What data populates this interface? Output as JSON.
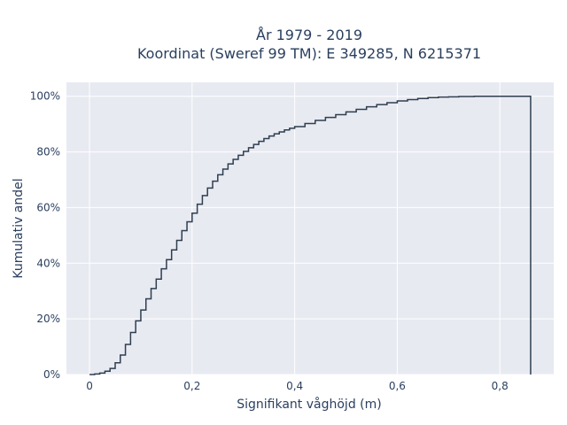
{
  "chart_data": {
    "type": "line",
    "subtype": "empirical-cdf-step",
    "title_lines": [
      "År 1979 - 2019",
      "Koordinat (Sweref 99 TM): E 349285, N 6215371"
    ],
    "xlabel": "Signifikant våghöjd (m)",
    "ylabel": "Kumulativ andel",
    "xlim": [
      -0.045,
      0.905
    ],
    "ylim": [
      -0.0,
      1.05
    ],
    "x_ticks": [
      0,
      0.2,
      0.4,
      0.6,
      0.8
    ],
    "x_tick_labels": [
      "0",
      "0,2",
      "0,4",
      "0,6",
      "0,8"
    ],
    "y_ticks": [
      0,
      0.2,
      0.4,
      0.6,
      0.8,
      1.0
    ],
    "y_tick_labels": [
      "0%",
      "20%",
      "40%",
      "60%",
      "80%",
      "100%"
    ],
    "grid": true,
    "legend": "none",
    "colors": {
      "line": "#2f3e4e",
      "plot_bg": "#e8eaf2",
      "grid": "#ffffff"
    },
    "series": [
      {
        "x": [
          0,
          0.01,
          0.02,
          0.03,
          0.04,
          0.05,
          0.06,
          0.07,
          0.08,
          0.09,
          0.1,
          0.11,
          0.12,
          0.13,
          0.14,
          0.15,
          0.16,
          0.17,
          0.18,
          0.19,
          0.2,
          0.21,
          0.22,
          0.23,
          0.24,
          0.25,
          0.26,
          0.27,
          0.28,
          0.29,
          0.3,
          0.31,
          0.32,
          0.33,
          0.34,
          0.35,
          0.36,
          0.37,
          0.38,
          0.39,
          0.4,
          0.42,
          0.44,
          0.46,
          0.48,
          0.5,
          0.52,
          0.54,
          0.56,
          0.58,
          0.6,
          0.62,
          0.64,
          0.66,
          0.68,
          0.7,
          0.72,
          0.75,
          0.8,
          0.86,
          0.86
        ],
        "y": [
          0,
          0.002,
          0.005,
          0.012,
          0.022,
          0.042,
          0.07,
          0.108,
          0.151,
          0.193,
          0.232,
          0.272,
          0.309,
          0.343,
          0.38,
          0.413,
          0.448,
          0.482,
          0.517,
          0.549,
          0.58,
          0.612,
          0.643,
          0.67,
          0.695,
          0.718,
          0.738,
          0.757,
          0.773,
          0.788,
          0.802,
          0.815,
          0.827,
          0.838,
          0.848,
          0.857,
          0.865,
          0.872,
          0.879,
          0.885,
          0.891,
          0.902,
          0.913,
          0.924,
          0.934,
          0.944,
          0.953,
          0.962,
          0.97,
          0.977,
          0.983,
          0.988,
          0.992,
          0.995,
          0.997,
          0.998,
          0.999,
          1.0,
          1.0,
          1.0,
          0.0
        ]
      }
    ]
  }
}
